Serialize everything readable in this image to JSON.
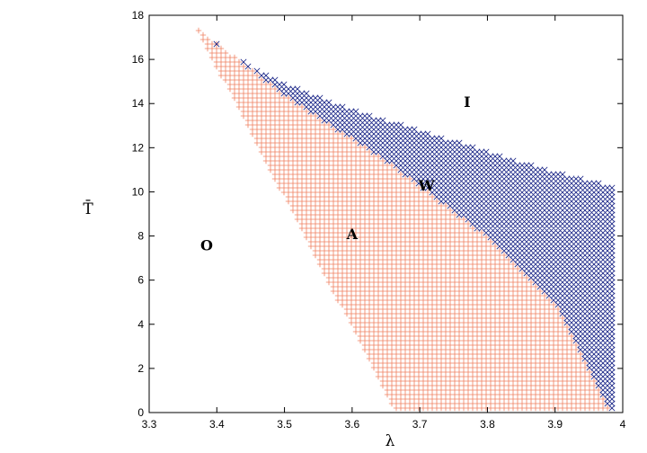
{
  "chart_data": {
    "type": "scatter",
    "title": "",
    "xlabel": "λ",
    "ylabel": "T̄",
    "xlim": [
      3.3,
      4.0
    ],
    "ylim": [
      0,
      18
    ],
    "x_ticks": [
      "3.3",
      "3.4",
      "3.5",
      "3.6",
      "3.7",
      "3.8",
      "3.9",
      "4"
    ],
    "y_ticks": [
      "0",
      "2",
      "4",
      "6",
      "8",
      "10",
      "12",
      "14",
      "16",
      "18"
    ],
    "grid": false,
    "legend": "none",
    "series": [
      {
        "marker": "plus",
        "color": "#f08060",
        "region_outline": [
          [
            3.665,
            0
          ],
          [
            3.37,
            17.4
          ],
          [
            3.5,
            14.4
          ],
          [
            3.65,
            11.4
          ],
          [
            3.8,
            8.0
          ],
          [
            3.9,
            5.0
          ],
          [
            3.98,
            0.2
          ]
        ]
      },
      {
        "marker": "cross",
        "color": "#1f2a8a",
        "region_outline": [
          [
            3.37,
            17.4
          ],
          [
            3.5,
            14.4
          ],
          [
            3.65,
            11.4
          ],
          [
            3.8,
            8.0
          ],
          [
            3.9,
            5.0
          ],
          [
            3.98,
            0.2
          ],
          [
            3.99,
            0.2
          ],
          [
            3.99,
            10.2
          ],
          [
            3.9,
            10.9
          ],
          [
            3.8,
            11.8
          ],
          [
            3.7,
            12.8
          ],
          [
            3.6,
            13.7
          ],
          [
            3.5,
            14.9
          ],
          [
            3.42,
            16.2
          ],
          [
            3.37,
            17.4
          ]
        ]
      }
    ],
    "annotations": [
      {
        "text": "I",
        "x": 3.77,
        "y": 14.1
      },
      {
        "text": "W",
        "x": 3.71,
        "y": 10.3
      },
      {
        "text": "A",
        "x": 3.6,
        "y": 8.1
      },
      {
        "text": "O",
        "x": 3.385,
        "y": 7.6
      }
    ]
  }
}
